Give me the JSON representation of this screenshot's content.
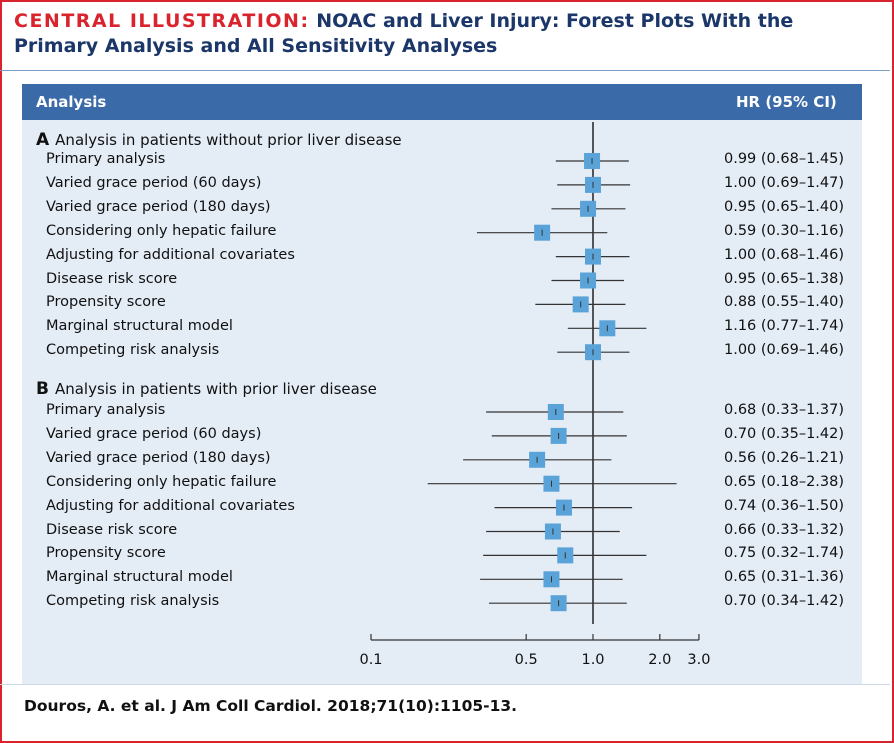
{
  "header": {
    "title_lead": "CENTRAL ILLUSTRATION:",
    "title_rest": "NOAC and Liver Injury: Forest Plots With the Primary Analysis and All Sensitivity Analyses"
  },
  "table_header": {
    "analysis": "Analysis",
    "hr": "HR (95% CI)"
  },
  "citation": "Douros, A. et al. J Am Coll Cardiol. 2018;71(10):1105-13.",
  "colors": {
    "accent": "#d9232d",
    "header_bar": "#3b6aa9",
    "panel": "#e4ecf6",
    "marker": "#5aa3d8",
    "title": "#1b3668"
  },
  "chart_data": {
    "type": "forest",
    "x_scale": "log",
    "xlim": [
      0.1,
      3.0
    ],
    "x_ticks": [
      0.1,
      0.5,
      1.0,
      2.0,
      3.0
    ],
    "x_tick_labels": [
      "0.1",
      "0.5",
      "1.0",
      "2.0",
      "3.0"
    ],
    "reference_line": 1.0,
    "sections": [
      {
        "letter": "A",
        "title": "Analysis in patients without prior liver disease",
        "rows": [
          {
            "label": "Primary analysis",
            "hr": 0.99,
            "lo": 0.68,
            "hi": 1.45,
            "text": "0.99 (0.68–1.45)"
          },
          {
            "label": "Varied grace period (60 days)",
            "hr": 1.0,
            "lo": 0.69,
            "hi": 1.47,
            "text": "1.00 (0.69–1.47)"
          },
          {
            "label": "Varied grace period (180 days)",
            "hr": 0.95,
            "lo": 0.65,
            "hi": 1.4,
            "text": "0.95 (0.65–1.40)"
          },
          {
            "label": "Considering only hepatic failure",
            "hr": 0.59,
            "lo": 0.3,
            "hi": 1.16,
            "text": "0.59 (0.30–1.16)"
          },
          {
            "label": "Adjusting for additional covariates",
            "hr": 1.0,
            "lo": 0.68,
            "hi": 1.46,
            "text": "1.00 (0.68–1.46)"
          },
          {
            "label": "Disease risk score",
            "hr": 0.95,
            "lo": 0.65,
            "hi": 1.38,
            "text": "0.95 (0.65–1.38)"
          },
          {
            "label": "Propensity score",
            "hr": 0.88,
            "lo": 0.55,
            "hi": 1.4,
            "text": "0.88 (0.55–1.40)"
          },
          {
            "label": "Marginal structural model",
            "hr": 1.16,
            "lo": 0.77,
            "hi": 1.74,
            "text": "1.16 (0.77–1.74)"
          },
          {
            "label": "Competing risk analysis",
            "hr": 1.0,
            "lo": 0.69,
            "hi": 1.46,
            "text": "1.00 (0.69–1.46)"
          }
        ]
      },
      {
        "letter": "B",
        "title": "Analysis in patients with prior liver disease",
        "rows": [
          {
            "label": "Primary analysis",
            "hr": 0.68,
            "lo": 0.33,
            "hi": 1.37,
            "text": "0.68 (0.33–1.37)"
          },
          {
            "label": "Varied grace period (60 days)",
            "hr": 0.7,
            "lo": 0.35,
            "hi": 1.42,
            "text": "0.70 (0.35–1.42)"
          },
          {
            "label": "Varied grace period (180 days)",
            "hr": 0.56,
            "lo": 0.26,
            "hi": 1.21,
            "text": "0.56 (0.26–1.21)"
          },
          {
            "label": "Considering only hepatic failure",
            "hr": 0.65,
            "lo": 0.18,
            "hi": 2.38,
            "text": "0.65 (0.18–2.38)"
          },
          {
            "label": "Adjusting for additional covariates",
            "hr": 0.74,
            "lo": 0.36,
            "hi": 1.5,
            "text": "0.74 (0.36–1.50)"
          },
          {
            "label": "Disease risk score",
            "hr": 0.66,
            "lo": 0.33,
            "hi": 1.32,
            "text": "0.66 (0.33–1.32)"
          },
          {
            "label": "Propensity score",
            "hr": 0.75,
            "lo": 0.32,
            "hi": 1.74,
            "text": "0.75 (0.32–1.74)"
          },
          {
            "label": "Marginal structural model",
            "hr": 0.65,
            "lo": 0.31,
            "hi": 1.36,
            "text": "0.65 (0.31–1.36)"
          },
          {
            "label": "Competing risk analysis",
            "hr": 0.7,
            "lo": 0.34,
            "hi": 1.42,
            "text": "0.70 (0.34–1.42)"
          }
        ]
      }
    ]
  }
}
